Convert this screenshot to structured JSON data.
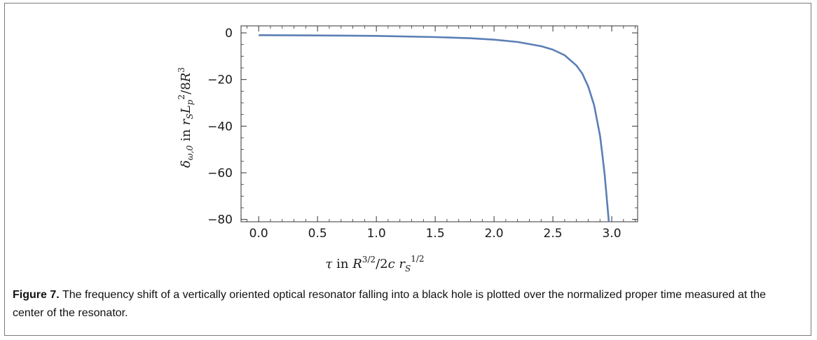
{
  "chart_data": {
    "type": "line",
    "xlabel": "τ in R^{3/2}/2c r_S^{1/2}",
    "ylabel": "δ_{ω,0} in r_S L_p^2/8R^3",
    "xlim": [
      -0.15,
      3.22
    ],
    "ylim": [
      -81,
      3
    ],
    "x_ticks": [
      0.0,
      0.5,
      1.0,
      1.5,
      2.0,
      2.5,
      3.0
    ],
    "x_tick_labels": [
      "0.0",
      "0.5",
      "1.0",
      "1.5",
      "2.0",
      "2.5",
      "3.0"
    ],
    "y_ticks": [
      0,
      -20,
      -40,
      -60,
      -80
    ],
    "y_tick_labels": [
      "0",
      "−20",
      "−40",
      "−60",
      "−80"
    ],
    "series": [
      {
        "color": "#5b7fb5",
        "x": [
          0.0,
          0.5,
          1.0,
          1.5,
          1.8,
          2.0,
          2.2,
          2.4,
          2.5,
          2.6,
          2.7,
          2.75,
          2.8,
          2.85,
          2.9,
          2.92,
          2.94,
          2.96,
          2.975
        ],
        "y": [
          -1.0,
          -1.1,
          -1.3,
          -1.8,
          -2.3,
          -2.9,
          -3.9,
          -5.7,
          -7.2,
          -9.6,
          -14.0,
          -17.5,
          -23.0,
          -31.0,
          -44.0,
          -52.0,
          -61.0,
          -72.0,
          -81.0
        ]
      }
    ],
    "grid": false,
    "frame": true
  },
  "figure": {
    "label": "Figure 7.",
    "caption": "The frequency shift of a vertically oriented optical resonator falling into a black hole is plotted over the normalized proper time measured at the center of the resonator."
  }
}
